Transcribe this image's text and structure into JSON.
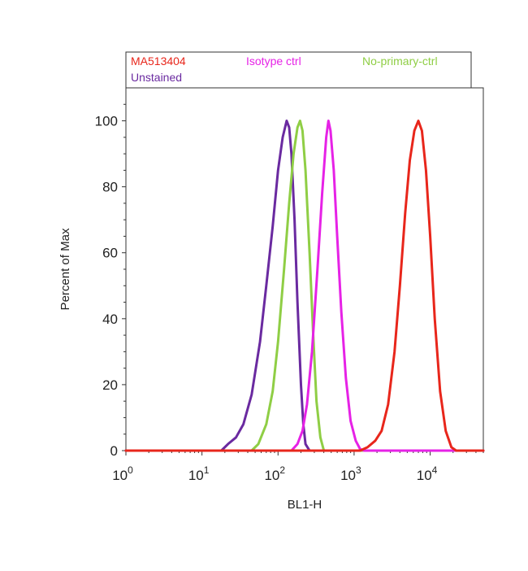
{
  "chart_data": {
    "type": "line",
    "title": "",
    "xlabel": "BL1-H",
    "ylabel": "Percent of Max",
    "x_scale": "log",
    "xlim": [
      1,
      50000
    ],
    "ylim": [
      0,
      110
    ],
    "grid": false,
    "legend_position": "top",
    "legend": [
      {
        "name": "MA513404",
        "color": "#e8261b"
      },
      {
        "name": "Isotype ctrl",
        "color": "#e622e6"
      },
      {
        "name": "No-primary-ctrl",
        "color": "#8fce45"
      },
      {
        "name": "Unstained",
        "color": "#6a2aa0"
      }
    ],
    "y_ticks": [
      "0",
      "20",
      "40",
      "60",
      "80",
      "100"
    ],
    "y_tick_values": [
      0,
      20,
      40,
      60,
      80,
      100
    ],
    "x_ticks": [
      {
        "value": 1,
        "base": "10",
        "exp": "0"
      },
      {
        "value": 10,
        "base": "10",
        "exp": "1"
      },
      {
        "value": 100,
        "base": "10",
        "exp": "2"
      },
      {
        "value": 1000,
        "base": "10",
        "exp": "3"
      },
      {
        "value": 10000,
        "base": "10",
        "exp": "4"
      }
    ],
    "series": [
      {
        "name": "Unstained",
        "color": "#6a2aa0",
        "x": [
          1,
          18,
          22,
          28,
          35,
          45,
          58,
          70,
          85,
          100,
          115,
          130,
          140,
          150,
          165,
          180,
          200,
          215,
          230,
          260,
          300,
          50000
        ],
        "y": [
          0,
          0,
          2,
          4,
          8,
          17,
          33,
          50,
          68,
          85,
          95,
          100,
          98,
          90,
          70,
          45,
          20,
          8,
          2,
          0,
          0,
          0
        ]
      },
      {
        "name": "No-primary-ctrl",
        "color": "#8fce45",
        "x": [
          1,
          45,
          55,
          70,
          85,
          100,
          120,
          140,
          160,
          180,
          195,
          210,
          230,
          260,
          290,
          320,
          360,
          400,
          50000
        ],
        "y": [
          0,
          0,
          2,
          8,
          18,
          33,
          55,
          75,
          90,
          98,
          100,
          97,
          85,
          60,
          35,
          15,
          4,
          0,
          0
        ]
      },
      {
        "name": "Isotype ctrl",
        "color": "#e622e6",
        "x": [
          1,
          150,
          180,
          210,
          240,
          280,
          330,
          380,
          430,
          460,
          490,
          540,
          600,
          680,
          780,
          900,
          1050,
          1200,
          1350,
          50000
        ],
        "y": [
          0,
          0,
          2,
          6,
          14,
          30,
          55,
          78,
          95,
          100,
          97,
          85,
          65,
          42,
          22,
          9,
          3,
          0.5,
          0,
          0
        ]
      },
      {
        "name": "MA513404",
        "color": "#e8261b",
        "x": [
          1,
          1200,
          1500,
          1900,
          2300,
          2800,
          3400,
          4000,
          4700,
          5400,
          6200,
          7000,
          7800,
          8800,
          10000,
          11500,
          13500,
          16000,
          19000,
          22000,
          50000
        ],
        "y": [
          0,
          0,
          1,
          3,
          6,
          14,
          30,
          50,
          72,
          88,
          97,
          100,
          97,
          85,
          65,
          40,
          18,
          6,
          1,
          0,
          0
        ]
      }
    ]
  }
}
